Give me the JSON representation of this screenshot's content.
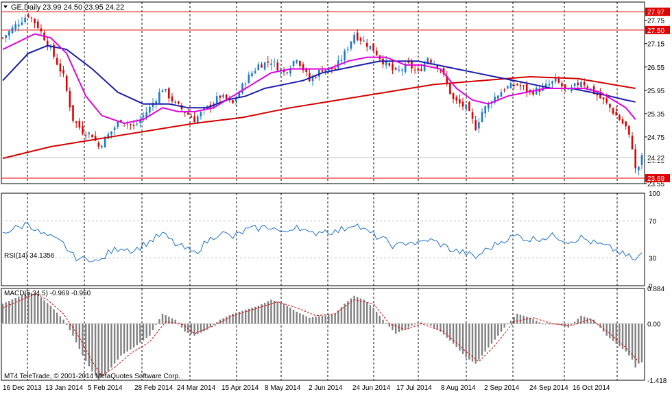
{
  "window": {
    "header_label": "GE,Daily",
    "ohlc": "23.99 24.50 23.95 24.22",
    "copyright": "MT4 TeleTrade, © 2001-2014 MetaQuotes Software Corp."
  },
  "chart_data": [
    {
      "type": "candlestick",
      "title": "GE,Daily",
      "ylim": [
        23.55,
        28.22
      ],
      "y_ticks": [
        27.75,
        27.15,
        26.55,
        25.95,
        25.35,
        24.75,
        24.15,
        23.55
      ],
      "y_tick_labels": [
        "27.75",
        "27.15",
        "26.55",
        "25.95",
        "25.35",
        "24.75",
        "24.15",
        "23.55"
      ],
      "price_lines": [
        {
          "label": "27.97",
          "value": 27.97,
          "color": "#e00000"
        },
        {
          "label": "27.50",
          "value": 27.5,
          "color": "#e00000"
        },
        {
          "label": "23.69",
          "value": 23.69,
          "color": "#e00000"
        }
      ],
      "current_price": {
        "label": "24.22",
        "value": 24.22
      },
      "grid": true,
      "x_tick_labels": [
        "16 Dec 2013",
        "13 Jan 2014",
        "5 Feb 2014",
        "28 Feb 2014",
        "24 Mar 2014",
        "15 Apr 2014",
        "8 May 2014",
        "2 Jun 2014",
        "24 Jun 2014",
        "17 Jul 2014",
        "8 Aug 2014",
        "2 Sep 2014",
        "24 Sep 2014",
        "16 Oct 2014"
      ],
      "close_path": [
        [
          0,
          27.3
        ],
        [
          5,
          27.7
        ],
        [
          8,
          27.9
        ],
        [
          11,
          27.6
        ],
        [
          15,
          27.0
        ],
        [
          19,
          26.3
        ],
        [
          22,
          25.2
        ],
        [
          25,
          24.9
        ],
        [
          28,
          24.8
        ],
        [
          30,
          24.5
        ],
        [
          33,
          24.8
        ],
        [
          37,
          25.2
        ],
        [
          41,
          25.0
        ],
        [
          46,
          25.5
        ],
        [
          50,
          26.0
        ],
        [
          54,
          25.6
        ],
        [
          57,
          25.4
        ],
        [
          60,
          25.2
        ],
        [
          64,
          25.5
        ],
        [
          68,
          25.8
        ],
        [
          72,
          25.6
        ],
        [
          76,
          26.2
        ],
        [
          80,
          26.6
        ],
        [
          84,
          26.7
        ],
        [
          88,
          26.4
        ],
        [
          92,
          26.8
        ],
        [
          96,
          26.2
        ],
        [
          100,
          26.5
        ],
        [
          104,
          26.5
        ],
        [
          107,
          26.9
        ],
        [
          110,
          27.4
        ],
        [
          113,
          27.2
        ],
        [
          116,
          27.0
        ],
        [
          119,
          26.7
        ],
        [
          123,
          26.4
        ],
        [
          127,
          26.6
        ],
        [
          130,
          26.4
        ],
        [
          133,
          26.8
        ],
        [
          137,
          26.5
        ],
        [
          141,
          25.7
        ],
        [
          145,
          25.5
        ],
        [
          148,
          25.0
        ],
        [
          150,
          25.4
        ],
        [
          153,
          25.7
        ],
        [
          157,
          26.0
        ],
        [
          161,
          26.1
        ],
        [
          165,
          25.9
        ],
        [
          169,
          26.0
        ],
        [
          173,
          26.2
        ],
        [
          177,
          25.9
        ],
        [
          181,
          26.2
        ],
        [
          185,
          25.9
        ],
        [
          189,
          25.6
        ],
        [
          192,
          25.3
        ],
        [
          195,
          25.0
        ],
        [
          197,
          24.5
        ],
        [
          198,
          23.9
        ],
        [
          199,
          24.0
        ],
        [
          200,
          24.22
        ]
      ],
      "ma_fast_path": [
        [
          0,
          27.0
        ],
        [
          10,
          27.4
        ],
        [
          15,
          27.3
        ],
        [
          20,
          26.9
        ],
        [
          26,
          25.8
        ],
        [
          31,
          25.3
        ],
        [
          38,
          25.1
        ],
        [
          44,
          25.2
        ],
        [
          50,
          25.5
        ],
        [
          55,
          25.4
        ],
        [
          60,
          25.4
        ],
        [
          66,
          25.5
        ],
        [
          72,
          25.8
        ],
        [
          78,
          26.1
        ],
        [
          84,
          26.4
        ],
        [
          90,
          26.5
        ],
        [
          96,
          26.5
        ],
        [
          102,
          26.5
        ],
        [
          108,
          26.7
        ],
        [
          114,
          26.8
        ],
        [
          120,
          26.8
        ],
        [
          126,
          26.6
        ],
        [
          131,
          26.6
        ],
        [
          137,
          26.5
        ],
        [
          142,
          26.0
        ],
        [
          147,
          25.7
        ],
        [
          152,
          25.6
        ],
        [
          158,
          25.8
        ],
        [
          164,
          25.9
        ],
        [
          170,
          26.0
        ],
        [
          176,
          26.0
        ],
        [
          182,
          26.0
        ],
        [
          187,
          25.9
        ],
        [
          191,
          25.7
        ],
        [
          195,
          25.5
        ],
        [
          198,
          25.2
        ]
      ],
      "ma_mid_path": [
        [
          0,
          26.2
        ],
        [
          8,
          26.9
        ],
        [
          14,
          27.1
        ],
        [
          20,
          27.0
        ],
        [
          28,
          26.5
        ],
        [
          36,
          25.9
        ],
        [
          44,
          25.6
        ],
        [
          52,
          25.6
        ],
        [
          58,
          25.5
        ],
        [
          64,
          25.5
        ],
        [
          70,
          25.7
        ],
        [
          76,
          25.8
        ],
        [
          82,
          26.0
        ],
        [
          88,
          26.1
        ],
        [
          94,
          26.2
        ],
        [
          100,
          26.4
        ],
        [
          106,
          26.5
        ],
        [
          112,
          26.6
        ],
        [
          118,
          26.7
        ],
        [
          124,
          26.7
        ],
        [
          130,
          26.7
        ],
        [
          136,
          26.6
        ],
        [
          142,
          26.5
        ],
        [
          148,
          26.4
        ],
        [
          154,
          26.3
        ],
        [
          160,
          26.2
        ],
        [
          166,
          26.1
        ],
        [
          172,
          26.0
        ],
        [
          178,
          26.0
        ],
        [
          184,
          25.9
        ],
        [
          190,
          25.8
        ],
        [
          195,
          25.7
        ],
        [
          198,
          25.65
        ]
      ],
      "ma_slow_path": [
        [
          0,
          24.2
        ],
        [
          15,
          24.5
        ],
        [
          30,
          24.7
        ],
        [
          45,
          24.9
        ],
        [
          60,
          25.1
        ],
        [
          75,
          25.25
        ],
        [
          90,
          25.5
        ],
        [
          105,
          25.7
        ],
        [
          120,
          25.9
        ],
        [
          135,
          26.1
        ],
        [
          150,
          26.2
        ],
        [
          165,
          26.3
        ],
        [
          180,
          26.25
        ],
        [
          198,
          26.0
        ]
      ],
      "colors": {
        "bull": "#1a78d6",
        "bear": "#e00000",
        "ma_fast": "#e000e0",
        "ma_mid": "#1c1ca8",
        "ma_slow": "#d40000",
        "grid": "#000000"
      }
    },
    {
      "type": "line",
      "title": "RSI(14) 34.1356",
      "ylim": [
        0,
        100
      ],
      "y_tick_labels": [
        "100",
        "70",
        "30",
        "0"
      ],
      "levels": [
        70,
        30
      ],
      "path": [
        [
          0,
          58
        ],
        [
          5,
          63
        ],
        [
          8,
          68
        ],
        [
          11,
          58
        ],
        [
          15,
          52
        ],
        [
          19,
          45
        ],
        [
          22,
          32
        ],
        [
          25,
          28
        ],
        [
          28,
          30
        ],
        [
          30,
          25
        ],
        [
          33,
          35
        ],
        [
          37,
          42
        ],
        [
          41,
          38
        ],
        [
          46,
          48
        ],
        [
          50,
          56
        ],
        [
          54,
          45
        ],
        [
          57,
          40
        ],
        [
          60,
          35
        ],
        [
          64,
          48
        ],
        [
          68,
          58
        ],
        [
          72,
          52
        ],
        [
          76,
          60
        ],
        [
          80,
          62
        ],
        [
          84,
          64
        ],
        [
          88,
          56
        ],
        [
          92,
          66
        ],
        [
          96,
          55
        ],
        [
          100,
          60
        ],
        [
          104,
          58
        ],
        [
          107,
          62
        ],
        [
          110,
          68
        ],
        [
          113,
          60
        ],
        [
          116,
          55
        ],
        [
          119,
          50
        ],
        [
          123,
          42
        ],
        [
          127,
          48
        ],
        [
          130,
          45
        ],
        [
          133,
          50
        ],
        [
          137,
          45
        ],
        [
          141,
          38
        ],
        [
          145,
          35
        ],
        [
          148,
          30
        ],
        [
          150,
          36
        ],
        [
          153,
          42
        ],
        [
          157,
          50
        ],
        [
          161,
          54
        ],
        [
          165,
          50
        ],
        [
          169,
          52
        ],
        [
          173,
          54
        ],
        [
          177,
          48
        ],
        [
          181,
          52
        ],
        [
          185,
          46
        ],
        [
          189,
          42
        ],
        [
          192,
          38
        ],
        [
          195,
          32
        ],
        [
          197,
          30
        ],
        [
          198,
          26
        ],
        [
          199,
          32
        ],
        [
          200,
          34.14
        ]
      ],
      "color": "#1e6fd0"
    },
    {
      "type": "bar",
      "title": "MACD(5,34,5) -0.969 -0.950",
      "ylim": [
        -1.418,
        0.884
      ],
      "y_tick_labels": [
        "0.884",
        "0.00",
        "-1.418"
      ],
      "macd_path": [
        [
          0,
          0.5
        ],
        [
          5,
          0.68
        ],
        [
          8,
          0.8
        ],
        [
          11,
          0.72
        ],
        [
          15,
          0.45
        ],
        [
          19,
          0.1
        ],
        [
          22,
          -0.3
        ],
        [
          25,
          -0.8
        ],
        [
          28,
          -1.2
        ],
        [
          30,
          -1.4
        ],
        [
          33,
          -1.2
        ],
        [
          37,
          -0.8
        ],
        [
          41,
          -0.6
        ],
        [
          46,
          -0.3
        ],
        [
          50,
          0.25
        ],
        [
          54,
          0.1
        ],
        [
          57,
          -0.2
        ],
        [
          60,
          -0.3
        ],
        [
          64,
          -0.15
        ],
        [
          68,
          0.1
        ],
        [
          72,
          0.25
        ],
        [
          76,
          0.35
        ],
        [
          80,
          0.45
        ],
        [
          84,
          0.6
        ],
        [
          88,
          0.5
        ],
        [
          92,
          0.3
        ],
        [
          96,
          0.15
        ],
        [
          100,
          0.2
        ],
        [
          104,
          0.25
        ],
        [
          107,
          0.5
        ],
        [
          110,
          0.7
        ],
        [
          113,
          0.6
        ],
        [
          116,
          0.4
        ],
        [
          119,
          0.1
        ],
        [
          123,
          -0.25
        ],
        [
          127,
          -0.1
        ],
        [
          130,
          0.05
        ],
        [
          133,
          0.0
        ],
        [
          137,
          -0.2
        ],
        [
          141,
          -0.5
        ],
        [
          145,
          -0.85
        ],
        [
          148,
          -1.0
        ],
        [
          150,
          -0.8
        ],
        [
          153,
          -0.5
        ],
        [
          157,
          -0.1
        ],
        [
          161,
          0.25
        ],
        [
          165,
          0.15
        ],
        [
          169,
          0.0
        ],
        [
          173,
          0.0
        ],
        [
          177,
          -0.1
        ],
        [
          181,
          0.2
        ],
        [
          185,
          0.1
        ],
        [
          189,
          -0.3
        ],
        [
          192,
          -0.5
        ],
        [
          195,
          -0.7
        ],
        [
          197,
          -0.9
        ],
        [
          198,
          -1.1
        ],
        [
          199,
          -1.0
        ],
        [
          200,
          -0.969
        ]
      ],
      "signal_path": [
        [
          0,
          0.4
        ],
        [
          6,
          0.6
        ],
        [
          10,
          0.75
        ],
        [
          14,
          0.6
        ],
        [
          19,
          0.25
        ],
        [
          24,
          -0.35
        ],
        [
          28,
          -0.95
        ],
        [
          31,
          -1.3
        ],
        [
          35,
          -1.1
        ],
        [
          40,
          -0.75
        ],
        [
          46,
          -0.45
        ],
        [
          51,
          0.05
        ],
        [
          56,
          0.0
        ],
        [
          60,
          -0.25
        ],
        [
          66,
          -0.05
        ],
        [
          72,
          0.2
        ],
        [
          80,
          0.4
        ],
        [
          86,
          0.55
        ],
        [
          92,
          0.4
        ],
        [
          98,
          0.2
        ],
        [
          104,
          0.25
        ],
        [
          110,
          0.6
        ],
        [
          116,
          0.5
        ],
        [
          121,
          0.0
        ],
        [
          126,
          -0.15
        ],
        [
          131,
          0.0
        ],
        [
          138,
          -0.2
        ],
        [
          145,
          -0.7
        ],
        [
          149,
          -0.95
        ],
        [
          154,
          -0.55
        ],
        [
          160,
          0.05
        ],
        [
          166,
          0.15
        ],
        [
          172,
          0.0
        ],
        [
          178,
          -0.05
        ],
        [
          184,
          0.12
        ],
        [
          190,
          -0.25
        ],
        [
          195,
          -0.6
        ],
        [
          199,
          -0.95
        ]
      ],
      "colors": {
        "hist": "#808080",
        "signal": "#e00000"
      }
    }
  ]
}
